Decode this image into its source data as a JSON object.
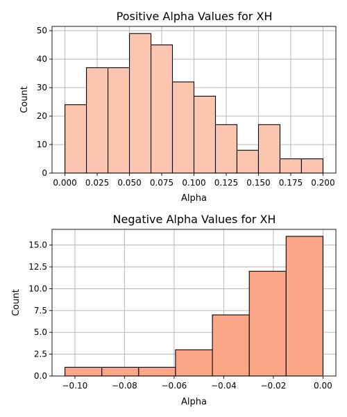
{
  "chart_data": [
    {
      "type": "bar",
      "title": "Positive Alpha Values for XH",
      "xlabel": "Alpha",
      "ylabel": "Count",
      "bar_color": "#fcc5b0",
      "edge_color": "#000000",
      "grid": true,
      "bin_edges": [
        0.0,
        0.01667,
        0.03333,
        0.05,
        0.06667,
        0.08333,
        0.1,
        0.11667,
        0.13333,
        0.15,
        0.16667,
        0.18333,
        0.2
      ],
      "values": [
        24,
        37,
        37,
        49,
        45,
        32,
        27,
        17,
        8,
        17,
        5,
        5
      ],
      "xlim": [
        -0.01,
        0.21
      ],
      "ylim": [
        0,
        51.5
      ],
      "xticks": [
        0.0,
        0.025,
        0.05,
        0.075,
        0.1,
        0.125,
        0.15,
        0.175,
        0.2
      ],
      "xtick_labels": [
        "0.000",
        "0.025",
        "0.050",
        "0.075",
        "0.100",
        "0.125",
        "0.150",
        "0.175",
        "0.200"
      ],
      "yticks": [
        0,
        10,
        20,
        30,
        40,
        50
      ],
      "ytick_labels": [
        "0",
        "10",
        "20",
        "30",
        "40",
        "50"
      ]
    },
    {
      "type": "bar",
      "title": "Negative Alpha Values for XH",
      "xlabel": "Alpha",
      "ylabel": "Count",
      "bar_color": "#fca688",
      "edge_color": "#000000",
      "grid": true,
      "bin_edges": [
        -0.104,
        -0.08914,
        -0.07429,
        -0.05943,
        -0.04457,
        -0.02971,
        -0.01486,
        0.0
      ],
      "values": [
        1,
        1,
        1,
        3,
        7,
        12,
        16
      ],
      "xlim": [
        -0.1092,
        0.0052
      ],
      "ylim": [
        0,
        16.8
      ],
      "xticks": [
        -0.1,
        -0.08,
        -0.06,
        -0.04,
        -0.02,
        0.0
      ],
      "xtick_labels": [
        "−0.10",
        "−0.08",
        "−0.06",
        "−0.04",
        "−0.02",
        "0.00"
      ],
      "yticks": [
        0,
        2.5,
        5,
        7.5,
        10,
        12.5,
        15
      ],
      "ytick_labels": [
        "0.0",
        "2.5",
        "5.0",
        "7.5",
        "10.0",
        "12.5",
        "15.0"
      ]
    }
  ]
}
